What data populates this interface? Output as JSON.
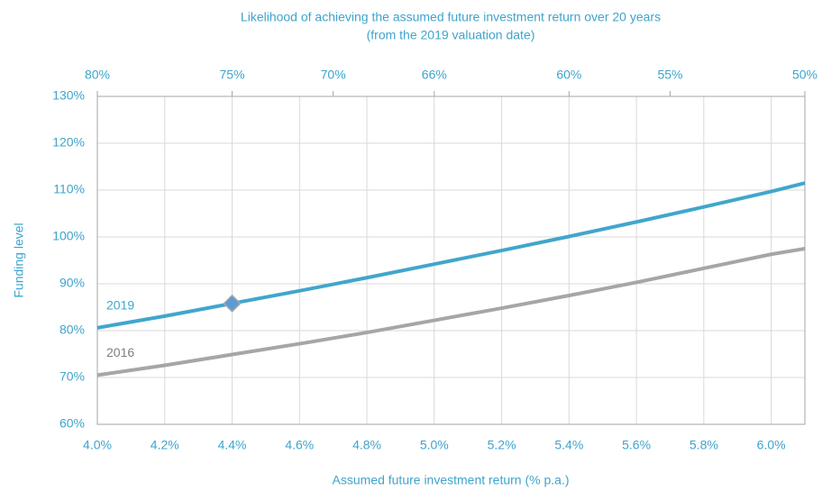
{
  "chart_data": {
    "type": "line",
    "top_axis_title": [
      "Likelihood of achieving the assumed future investment return over 20 years",
      "(from the 2019 valuation date)"
    ],
    "y_label": "Funding level",
    "x_label": "Assumed future investment return (% p.a.)",
    "x": [
      4.0,
      4.2,
      4.4,
      4.6,
      4.8,
      5.0,
      5.2,
      5.4,
      5.6,
      5.8,
      6.0,
      6.1
    ],
    "series": [
      {
        "name": "2019",
        "color": "#41a6cc",
        "values": [
          80.6,
          83.1,
          85.8,
          88.5,
          91.3,
          94.2,
          97.1,
          100.1,
          103.2,
          106.4,
          109.7,
          111.5
        ]
      },
      {
        "name": "2016",
        "color": "#a6a6a6",
        "values": [
          70.5,
          72.6,
          74.9,
          77.2,
          79.6,
          82.2,
          84.8,
          87.5,
          90.3,
          93.3,
          96.3,
          97.5
        ]
      }
    ],
    "marker": {
      "x": 4.4,
      "y": 85.8,
      "color": "#5b9bd5"
    },
    "xlim": [
      4.0,
      6.1
    ],
    "ylim": [
      60,
      130
    ],
    "xticks": [
      {
        "value": 4.0,
        "label": "4.0%"
      },
      {
        "value": 4.2,
        "label": "4.2%"
      },
      {
        "value": 4.4,
        "label": "4.4%"
      },
      {
        "value": 4.6,
        "label": "4.6%"
      },
      {
        "value": 4.8,
        "label": "4.8%"
      },
      {
        "value": 5.0,
        "label": "5.0%"
      },
      {
        "value": 5.2,
        "label": "5.2%"
      },
      {
        "value": 5.4,
        "label": "5.4%"
      },
      {
        "value": 5.6,
        "label": "5.6%"
      },
      {
        "value": 5.8,
        "label": "5.8%"
      },
      {
        "value": 6.0,
        "label": "6.0%"
      }
    ],
    "x2ticks": [
      {
        "value": 4.0,
        "label": "80%"
      },
      {
        "value": 4.4,
        "label": "75%"
      },
      {
        "value": 4.7,
        "label": "70%"
      },
      {
        "value": 5.0,
        "label": "66%"
      },
      {
        "value": 5.4,
        "label": "60%"
      },
      {
        "value": 5.7,
        "label": "55%"
      },
      {
        "value": 6.1,
        "label": "50%"
      }
    ],
    "yticks": [
      {
        "value": 60,
        "label": "60%"
      },
      {
        "value": 70,
        "label": "70%"
      },
      {
        "value": 80,
        "label": "80%"
      },
      {
        "value": 90,
        "label": "90%"
      },
      {
        "value": 100,
        "label": "100%"
      },
      {
        "value": 110,
        "label": "110%"
      },
      {
        "value": 120,
        "label": "120%"
      },
      {
        "value": 130,
        "label": "130%"
      }
    ],
    "grid": true
  }
}
